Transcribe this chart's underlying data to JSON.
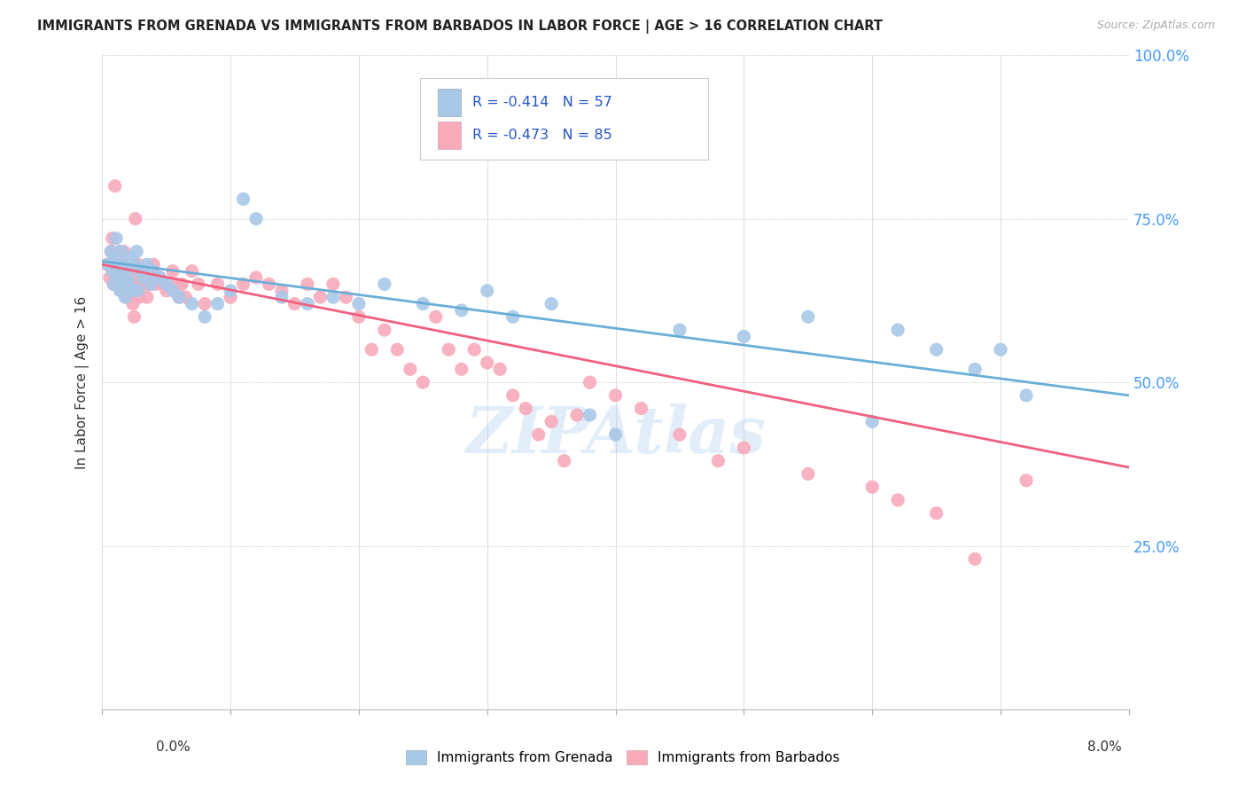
{
  "title": "IMMIGRANTS FROM GRENADA VS IMMIGRANTS FROM BARBADOS IN LABOR FORCE | AGE > 16 CORRELATION CHART",
  "source": "Source: ZipAtlas.com",
  "ylabel": "In Labor Force | Age > 16",
  "legend_label1": "Immigrants from Grenada",
  "legend_label2": "Immigrants from Barbados",
  "r1": -0.414,
  "n1": 57,
  "r2": -0.473,
  "n2": 85,
  "color1": "#a8c8e8",
  "color2": "#f8aabb",
  "line_color1": "#6aaed6",
  "line_color2": "#f06080",
  "xlim": [
    0.0,
    8.0
  ],
  "ylim": [
    0.0,
    100.0
  ],
  "ytick_vals": [
    25.0,
    50.0,
    75.0,
    100.0
  ],
  "ytick_labels": [
    "25.0%",
    "50.0%",
    "75.0%",
    "100.0%"
  ],
  "scatter1_x": [
    0.05,
    0.07,
    0.08,
    0.09,
    0.1,
    0.11,
    0.12,
    0.13,
    0.14,
    0.15,
    0.16,
    0.17,
    0.18,
    0.19,
    0.2,
    0.21,
    0.22,
    0.23,
    0.25,
    0.27,
    0.28,
    0.3,
    0.32,
    0.35,
    0.38,
    0.4,
    0.45,
    0.5,
    0.55,
    0.6,
    0.7,
    0.8,
    0.9,
    1.0,
    1.1,
    1.2,
    1.4,
    1.6,
    1.8,
    2.0,
    2.2,
    2.5,
    2.8,
    3.0,
    3.2,
    3.5,
    3.8,
    4.0,
    4.5,
    5.0,
    5.5,
    6.0,
    6.2,
    6.5,
    6.8,
    7.0,
    7.2
  ],
  "scatter1_y": [
    68,
    70,
    67,
    65,
    69,
    72,
    66,
    68,
    64,
    70,
    65,
    67,
    63,
    68,
    66,
    65,
    69,
    64,
    68,
    70,
    64,
    67,
    66,
    68,
    65,
    67,
    66,
    65,
    64,
    63,
    62,
    60,
    62,
    64,
    78,
    75,
    63,
    62,
    63,
    62,
    65,
    62,
    61,
    64,
    60,
    62,
    45,
    42,
    58,
    57,
    60,
    44,
    58,
    55,
    52,
    55,
    48
  ],
  "scatter2_x": [
    0.04,
    0.06,
    0.07,
    0.08,
    0.09,
    0.1,
    0.11,
    0.12,
    0.13,
    0.14,
    0.15,
    0.16,
    0.17,
    0.18,
    0.19,
    0.2,
    0.21,
    0.22,
    0.23,
    0.24,
    0.25,
    0.26,
    0.27,
    0.28,
    0.29,
    0.3,
    0.32,
    0.34,
    0.35,
    0.36,
    0.38,
    0.4,
    0.42,
    0.45,
    0.48,
    0.5,
    0.55,
    0.58,
    0.6,
    0.62,
    0.65,
    0.7,
    0.75,
    0.8,
    0.9,
    1.0,
    1.1,
    1.2,
    1.3,
    1.4,
    1.5,
    1.6,
    1.7,
    1.8,
    1.9,
    2.0,
    2.1,
    2.2,
    2.3,
    2.4,
    2.5,
    2.6,
    2.7,
    2.8,
    2.9,
    3.0,
    3.1,
    3.2,
    3.3,
    3.4,
    3.5,
    3.6,
    3.7,
    3.8,
    4.0,
    4.2,
    4.5,
    4.8,
    5.0,
    5.5,
    6.0,
    6.2,
    6.5,
    6.8,
    7.2
  ],
  "scatter2_y": [
    68,
    66,
    70,
    72,
    65,
    80,
    67,
    69,
    66,
    70,
    68,
    64,
    70,
    65,
    67,
    63,
    64,
    66,
    65,
    62,
    60,
    75,
    65,
    68,
    63,
    67,
    65,
    67,
    63,
    65,
    67,
    68,
    65,
    66,
    65,
    64,
    67,
    65,
    63,
    65,
    63,
    67,
    65,
    62,
    65,
    63,
    65,
    66,
    65,
    64,
    62,
    65,
    63,
    65,
    63,
    60,
    55,
    58,
    55,
    52,
    50,
    60,
    55,
    52,
    55,
    53,
    52,
    48,
    46,
    42,
    44,
    38,
    45,
    50,
    48,
    46,
    42,
    38,
    40,
    36,
    34,
    32,
    30,
    23,
    35
  ],
  "reg1_x0": 0.0,
  "reg1_y0": 68.5,
  "reg1_x1": 8.0,
  "reg1_y1": 48.0,
  "reg2_x0": 0.0,
  "reg2_y0": 68.0,
  "reg2_x1": 8.0,
  "reg2_y1": 37.0
}
